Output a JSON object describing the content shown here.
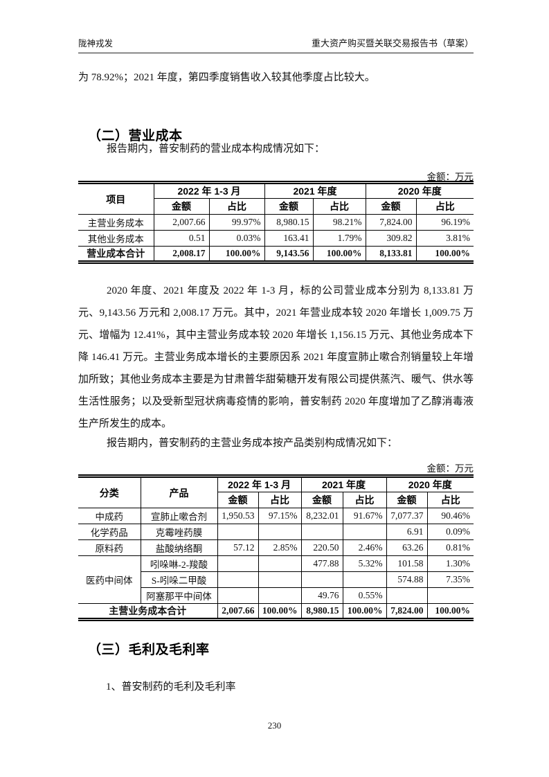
{
  "header": {
    "left_title": "陇神戎发",
    "right_title": "重大资产购买暨关联交易报告书（草案）"
  },
  "content": {
    "para_intro": "为 78.92%；2021 年度，第四季度销售收入较其他季度占比较大。",
    "section2_title": "（二）营业成本",
    "para_cost_intro": "报告期内，普安制药的营业成本构成情况如下：",
    "unit_label_1": "金额：万元",
    "para_analysis": "2020 年度、2021 年度及 2022 年 1-3 月，标的公司营业成本分别为 8,133.81 万元、9,143.56 万元和 2,008.17 万元。其中，2021 年营业成本较 2020 年增长 1,009.75 万元、增幅为 12.41%，其中主营业务成本较 2020 年增长 1,156.15 万元、其他业务成本下降 146.41 万元。主营业务成本增长的主要原因系 2021 年度宣肺止嗽合剂销量较上年增加所致；其他业务成本主要是为甘肃普华甜菊糖开发有限公司提供蒸汽、暖气、供水等生活性服务；以及受新型冠状病毒疫情的影响，普安制药 2020 年度增加了乙醇消毒液生产所发生的成本。",
    "para_product_intro": "报告期内，普安制药的主营业务成本按产品类别构成情况如下：",
    "unit_label_2": "金额：万元",
    "section3_title": "（三）毛利及毛利率",
    "sub_item_1": "1、普安制药的毛利及毛利率",
    "page_number": "230"
  },
  "table1": {
    "col_item": "项目",
    "periods": [
      "2022 年 1-3 月",
      "2021 年度",
      "2020 年度"
    ],
    "sub_amount": "金额",
    "sub_ratio": "占比",
    "rows": [
      {
        "item": "主营业务成本",
        "values": [
          "2,007.66",
          "99.97%",
          "8,980.15",
          "98.21%",
          "7,824.00",
          "96.19%"
        ]
      },
      {
        "item": "其他业务成本",
        "values": [
          "0.51",
          "0.03%",
          "163.41",
          "1.79%",
          "309.82",
          "3.81%"
        ]
      }
    ],
    "total_row": {
      "item": "营业成本合计",
      "values": [
        "2,008.17",
        "100.00%",
        "9,143.56",
        "100.00%",
        "8,133.81",
        "100.00%"
      ]
    }
  },
  "table2": {
    "col_category": "分类",
    "col_product": "产品",
    "periods": [
      "2022 年 1-3 月",
      "2021 年度",
      "2020 年度"
    ],
    "sub_amount": "金额",
    "sub_ratio": "占比",
    "rows": [
      {
        "category": "中成药",
        "category_rowspan": 1,
        "product": "宣肺止嗽合剂",
        "values": [
          "1,950.53",
          "97.15%",
          "8,232.01",
          "91.67%",
          "7,077.37",
          "90.46%"
        ]
      },
      {
        "category": "化学药品",
        "category_rowspan": 1,
        "product": "克霉唑药膜",
        "values": [
          "",
          "",
          "",
          "",
          "6.91",
          "0.09%"
        ]
      },
      {
        "category": "原料药",
        "category_rowspan": 1,
        "product": "盐酸纳络酮",
        "values": [
          "57.12",
          "2.85%",
          "220.50",
          "2.46%",
          "63.26",
          "0.81%"
        ]
      },
      {
        "category": "医药中间体",
        "category_rowspan": 3,
        "product": "吲哚啉-2-羧酸",
        "values": [
          "",
          "",
          "477.88",
          "5.32%",
          "101.58",
          "1.30%"
        ]
      },
      {
        "product": "S-吲哚二甲酸",
        "values": [
          "",
          "",
          "",
          "",
          "574.88",
          "7.35%"
        ]
      },
      {
        "product": "阿塞那平中间体",
        "values": [
          "",
          "",
          "49.76",
          "0.55%",
          "",
          ""
        ]
      }
    ],
    "total_row": {
      "label": "主营业务成本合计",
      "values": [
        "2,007.66",
        "100.00%",
        "8,980.15",
        "100.00%",
        "7,824.00",
        "100.00%"
      ]
    }
  }
}
